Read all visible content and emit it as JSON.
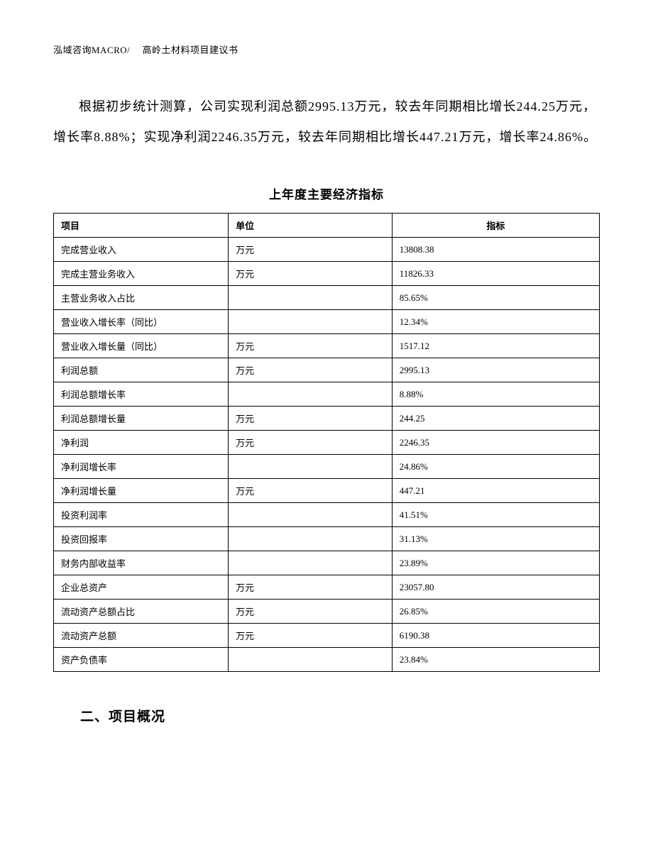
{
  "header": {
    "text": "泓域咨询MACRO/　 高岭土材料项目建议书"
  },
  "paragraph": {
    "text": "根据初步统计测算，公司实现利润总额2995.13万元，较去年同期相比增长244.25万元，增长率8.88%；实现净利润2246.35万元，较去年同期相比增长447.21万元，增长率24.86%。"
  },
  "table": {
    "title": "上年度主要经济指标",
    "columns": [
      "项目",
      "单位",
      "指标"
    ],
    "rows": [
      [
        "完成营业收入",
        "万元",
        "13808.38"
      ],
      [
        "完成主营业务收入",
        "万元",
        "11826.33"
      ],
      [
        "主营业务收入占比",
        "",
        "85.65%"
      ],
      [
        "营业收入增长率（同比）",
        "",
        "12.34%"
      ],
      [
        "营业收入增长量（同比）",
        "万元",
        "1517.12"
      ],
      [
        "利润总额",
        "万元",
        "2995.13"
      ],
      [
        "利润总额增长率",
        "",
        "8.88%"
      ],
      [
        "利润总额增长量",
        "万元",
        "244.25"
      ],
      [
        "净利润",
        "万元",
        "2246.35"
      ],
      [
        "净利润增长率",
        "",
        "24.86%"
      ],
      [
        "净利润增长量",
        "万元",
        "447.21"
      ],
      [
        "投资利润率",
        "",
        "41.51%"
      ],
      [
        "投资回报率",
        "",
        "31.13%"
      ],
      [
        "财务内部收益率",
        "",
        "23.89%"
      ],
      [
        "企业总资产",
        "万元",
        "23057.80"
      ],
      [
        "流动资产总额占比",
        "万元",
        "26.85%"
      ],
      [
        "流动资产总额",
        "万元",
        "6190.38"
      ],
      [
        "资产负债率",
        "",
        "23.84%"
      ]
    ]
  },
  "section_heading": {
    "text": "二、项目概况"
  }
}
